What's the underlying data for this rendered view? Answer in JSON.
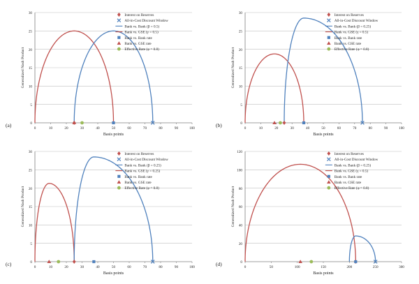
{
  "colors": {
    "interest": "#c0504d",
    "all_in": "#4f81bd",
    "bank_curve": "#4f81bd",
    "gse_curve": "#c0504d",
    "bank_rate": "#4f81bd",
    "gse_rate": "#c0504d",
    "effective": "#9bbb59",
    "grid": "#bfbfbf",
    "axis": "#7f7f7f"
  },
  "chart_data": [
    {
      "type": "line",
      "panel_label": "(a)",
      "xlabel": "Basis points",
      "ylabel": "Generalized Nash Product",
      "xlim": [
        0,
        100
      ],
      "ylim": [
        0,
        30
      ],
      "x_ticks": [
        0,
        10,
        20,
        30,
        40,
        50,
        60,
        70,
        80,
        90,
        100
      ],
      "y_ticks": [
        0,
        5,
        10,
        15,
        20,
        25,
        30
      ],
      "grid": "horizontal",
      "legend": "top-right",
      "legend_entries": [
        {
          "key": "interest",
          "label": "Interest on Reserves",
          "marker": "diamond"
        },
        {
          "key": "all_in",
          "label": "All-in-Cost Discount Window",
          "marker": "x"
        },
        {
          "key": "bank_curve",
          "label": "Bank vs. Bank (β = 0.5)",
          "marker": "line"
        },
        {
          "key": "gse_curve",
          "label": "Bank vs. GSE (γ = 0.5)",
          "marker": "line"
        },
        {
          "key": "bank_rate",
          "label": "Bank vs. Bank rate",
          "marker": "square"
        },
        {
          "key": "gse_rate",
          "label": "Bank vs. GSE rate",
          "marker": "triangle"
        },
        {
          "key": "effective",
          "label": "Effective Rate (φ = 0.8)",
          "marker": "circle"
        }
      ],
      "series": [
        {
          "key": "gse_curve",
          "start": 0,
          "end": 50,
          "peak_x": 25,
          "peak_y": 25
        },
        {
          "key": "bank_curve",
          "start": 25,
          "end": 75,
          "peak_x": 50,
          "peak_y": 25
        }
      ],
      "points": [
        {
          "key": "interest",
          "x": 25
        },
        {
          "key": "all_in",
          "x": 75
        },
        {
          "key": "bank_rate",
          "x": 50
        },
        {
          "key": "gse_rate",
          "x": 25
        },
        {
          "key": "effective",
          "x": 30
        }
      ]
    },
    {
      "type": "line",
      "panel_label": "(b)",
      "xlabel": "Basis points",
      "ylabel": "Generalized Nash Product",
      "xlim": [
        0,
        100
      ],
      "ylim": [
        0,
        30
      ],
      "x_ticks": [
        0,
        10,
        20,
        30,
        40,
        50,
        60,
        70,
        80,
        90,
        100
      ],
      "y_ticks": [
        0,
        5,
        10,
        15,
        20,
        25,
        30
      ],
      "grid": "horizontal",
      "legend": "top-right",
      "legend_entries": [
        {
          "key": "interest",
          "label": "Interest on Reserves",
          "marker": "diamond"
        },
        {
          "key": "all_in",
          "label": "All-in-Cost Discount Window",
          "marker": "x"
        },
        {
          "key": "bank_curve",
          "label": "Bank vs. Bank (β = 0.25)",
          "marker": "line"
        },
        {
          "key": "gse_curve",
          "label": "Bank vs. GSE (γ = 0.5)",
          "marker": "line"
        },
        {
          "key": "bank_rate",
          "label": "Bank vs. Bank rate",
          "marker": "square"
        },
        {
          "key": "gse_rate",
          "label": "Bank vs. GSE rate",
          "marker": "triangle"
        },
        {
          "key": "effective",
          "label": "Effective Rate (φ = 0.8)",
          "marker": "circle"
        }
      ],
      "series": [
        {
          "key": "gse_curve",
          "start": 0,
          "end": 37.5,
          "peak_x": 18.75,
          "peak_y": 18.75
        },
        {
          "key": "bank_curve",
          "start": 25,
          "end": 75,
          "peak_x": 37.5,
          "peak_y": 28.5
        }
      ],
      "points": [
        {
          "key": "interest",
          "x": 25
        },
        {
          "key": "all_in",
          "x": 75
        },
        {
          "key": "bank_rate",
          "x": 37.5
        },
        {
          "key": "gse_rate",
          "x": 18.75
        },
        {
          "key": "effective",
          "x": 22.5
        }
      ]
    },
    {
      "type": "line",
      "panel_label": "(c)",
      "xlabel": "Basis points",
      "ylabel": "Generalized Nash Product",
      "xlim": [
        0,
        100
      ],
      "ylim": [
        0,
        30
      ],
      "x_ticks": [
        0,
        10,
        20,
        30,
        40,
        50,
        60,
        70,
        80,
        90,
        100
      ],
      "y_ticks": [
        0,
        5,
        10,
        15,
        20,
        25,
        30
      ],
      "grid": "horizontal",
      "legend": "top-right",
      "legend_entries": [
        {
          "key": "interest",
          "label": "Interest on Reserves",
          "marker": "diamond"
        },
        {
          "key": "all_in",
          "label": "All-in-Cost Discount Window",
          "marker": "x"
        },
        {
          "key": "bank_curve",
          "label": "Bank vs. Bank (β = 0.25)",
          "marker": "line"
        },
        {
          "key": "gse_curve",
          "label": "Bank vs. GSE (γ = 0.25)",
          "marker": "line"
        },
        {
          "key": "bank_rate",
          "label": "Bank vs. Bank rate",
          "marker": "square"
        },
        {
          "key": "gse_rate",
          "label": "Bank vs. GSE rate",
          "marker": "triangle"
        },
        {
          "key": "effective",
          "label": "Effective Rate (φ = 0.8)",
          "marker": "circle"
        }
      ],
      "series": [
        {
          "key": "gse_curve",
          "start": 0,
          "end": 25,
          "peak_x": 9,
          "peak_y": 21.3
        },
        {
          "key": "bank_curve",
          "start": 25,
          "end": 75,
          "peak_x": 37.5,
          "peak_y": 28.5
        }
      ],
      "points": [
        {
          "key": "interest",
          "x": 25
        },
        {
          "key": "all_in",
          "x": 75
        },
        {
          "key": "bank_rate",
          "x": 37.5
        },
        {
          "key": "gse_rate",
          "x": 9
        },
        {
          "key": "effective",
          "x": 15
        }
      ]
    },
    {
      "type": "line",
      "panel_label": "(d)",
      "xlabel": "Basis points",
      "ylabel": "Generalized Nash Product",
      "xlim": [
        0,
        300
      ],
      "ylim": [
        0,
        120
      ],
      "x_ticks": [
        0,
        50,
        100,
        150,
        200,
        250,
        300
      ],
      "y_ticks": [
        0,
        20,
        40,
        60,
        80,
        100,
        120
      ],
      "grid": "horizontal",
      "legend": "top-right",
      "legend_entries": [
        {
          "key": "interest",
          "label": "Interest on Reserves",
          "marker": "diamond"
        },
        {
          "key": "all_in",
          "label": "All-in-Cost Discount Window",
          "marker": "x"
        },
        {
          "key": "bank_curve",
          "label": "Bank vs. Bank (β = 0.25)",
          "marker": "line"
        },
        {
          "key": "gse_curve",
          "label": "Bank vs. GSE (γ = 0.5)",
          "marker": "line"
        },
        {
          "key": "bank_rate",
          "label": "Bank vs. Bank rate",
          "marker": "square"
        },
        {
          "key": "gse_rate",
          "label": "Bank vs. GSE rate",
          "marker": "triangle"
        },
        {
          "key": "effective",
          "label": "Effective Rate (φ = 0.8)",
          "marker": "circle"
        }
      ],
      "series": [
        {
          "key": "gse_curve",
          "start": 0,
          "end": 212,
          "peak_x": 106,
          "peak_y": 106
        },
        {
          "key": "bank_curve",
          "start": 200,
          "end": 250,
          "peak_x": 212,
          "peak_y": 28
        }
      ],
      "points": [
        {
          "key": "interest",
          "x": 212
        },
        {
          "key": "all_in",
          "x": 250
        },
        {
          "key": "bank_rate",
          "x": 212
        },
        {
          "key": "gse_rate",
          "x": 106
        },
        {
          "key": "effective",
          "x": 127
        }
      ]
    }
  ]
}
